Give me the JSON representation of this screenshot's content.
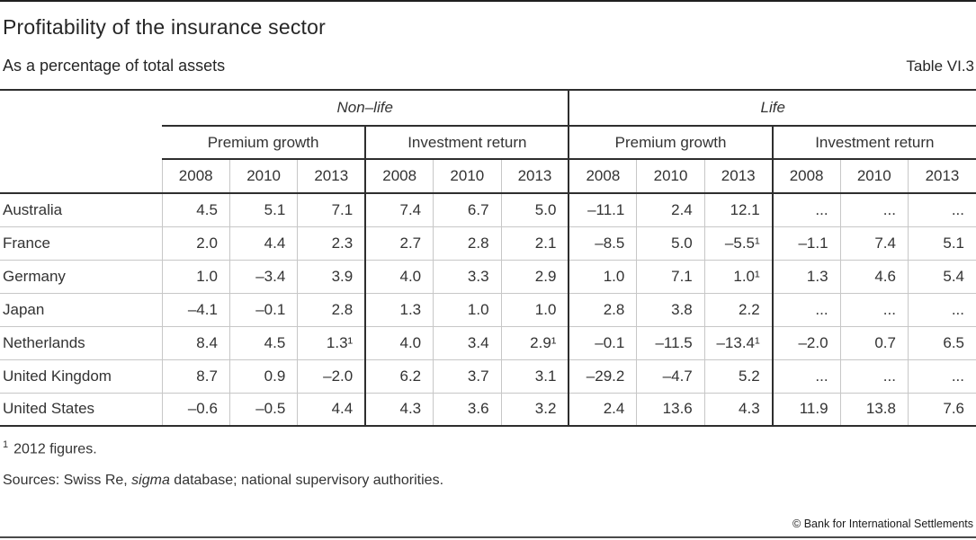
{
  "header": {
    "title": "Profitability of the insurance sector",
    "subtitle": "As a percentage of total assets",
    "table_label": "Table VI.3"
  },
  "table": {
    "groups": {
      "nonlife": "Non–life",
      "life": "Life"
    },
    "sub_headers": {
      "premium_growth": "Premium growth",
      "investment_return": "Investment return"
    },
    "years": [
      "2008",
      "2010",
      "2013"
    ],
    "rows": [
      {
        "country": "Australia",
        "values": [
          "4.5",
          "5.1",
          "7.1",
          "7.4",
          "6.7",
          "5.0",
          "–11.1",
          "2.4",
          "12.1",
          "...",
          "...",
          "..."
        ]
      },
      {
        "country": "France",
        "values": [
          "2.0",
          "4.4",
          "2.3",
          "2.7",
          "2.8",
          "2.1",
          "–8.5",
          "5.0",
          "–5.5¹",
          "–1.1",
          "7.4",
          "5.1"
        ]
      },
      {
        "country": "Germany",
        "values": [
          "1.0",
          "–3.4",
          "3.9",
          "4.0",
          "3.3",
          "2.9",
          "1.0",
          "7.1",
          "1.0¹",
          "1.3",
          "4.6",
          "5.4"
        ]
      },
      {
        "country": "Japan",
        "values": [
          "–4.1",
          "–0.1",
          "2.8",
          "1.3",
          "1.0",
          "1.0",
          "2.8",
          "3.8",
          "2.2",
          "...",
          "...",
          "..."
        ]
      },
      {
        "country": "Netherlands",
        "values": [
          "8.4",
          "4.5",
          "1.3¹",
          "4.0",
          "3.4",
          "2.9¹",
          "–0.1",
          "–11.5",
          "–13.4¹",
          "–2.0",
          "0.7",
          "6.5"
        ]
      },
      {
        "country": "United Kingdom",
        "values": [
          "8.7",
          "0.9",
          "–2.0",
          "6.2",
          "3.7",
          "3.1",
          "–29.2",
          "–4.7",
          "5.2",
          "...",
          "...",
          "..."
        ]
      },
      {
        "country": "United States",
        "values": [
          "–0.6",
          "–0.5",
          "4.4",
          "4.3",
          "3.6",
          "3.2",
          "2.4",
          "13.6",
          "4.3",
          "11.9",
          "13.8",
          "7.6"
        ]
      }
    ]
  },
  "footnote": {
    "marker": "1",
    "text": "2012 figures."
  },
  "sources": {
    "prefix": "Sources: Swiss Re, ",
    "emphasis": "sigma",
    "suffix": " database; national supervisory authorities."
  },
  "copyright": "© Bank for International Settlements"
}
